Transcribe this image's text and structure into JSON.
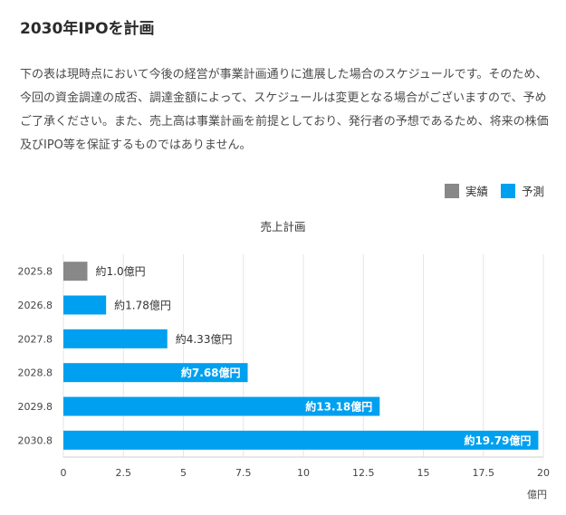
{
  "header": {
    "title": "2030年IPOを計画"
  },
  "description": "下の表は現時点において今後の経営が事業計画通りに進展した場合のスケジュールです。そのため、今回の資金調達の成否、調達金額によって、スケジュールは変更となる場合がございますので、予めご了承ください。また、売上高は事業計画を前提としており、発行者の予想であるため、将来の株価及びIPO等を保証するものではありません。",
  "legend": {
    "actual": {
      "label": "実績",
      "color": "#888888"
    },
    "forecast": {
      "label": "予測",
      "color": "#00a0f0"
    }
  },
  "chart_data": {
    "type": "bar",
    "orientation": "horizontal",
    "title": "売上計画",
    "xlabel": "億円",
    "ylabel": "",
    "xlim": [
      0,
      20
    ],
    "xticks": [
      "0",
      "2.5",
      "5",
      "7.5",
      "10",
      "12.5",
      "15",
      "17.5",
      "20"
    ],
    "grid": true,
    "categories": [
      "2025.8",
      "2026.8",
      "2027.8",
      "2028.8",
      "2029.8",
      "2030.8"
    ],
    "values": [
      1.0,
      1.78,
      4.33,
      7.68,
      13.18,
      19.79
    ],
    "labels": [
      "約1.0億円",
      "約1.78億円",
      "約4.33億円",
      "約7.68億円",
      "約13.18億円",
      "約19.79億円"
    ],
    "series_type": [
      "実績",
      "予測",
      "予測",
      "予測",
      "予測",
      "予測"
    ]
  }
}
